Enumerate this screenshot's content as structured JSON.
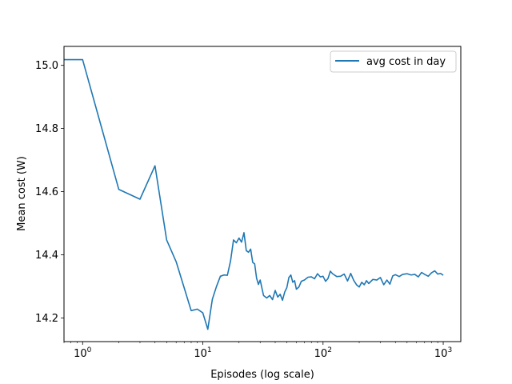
{
  "chart_data": {
    "type": "line",
    "xlabel": "Episodes (log scale)",
    "ylabel": "Mean cost (W)",
    "x_scale": "log",
    "xlim": [
      0.7,
      1400
    ],
    "ylim": [
      14.125,
      15.06
    ],
    "grid": false,
    "legend_position": "top-right",
    "x_ticks": [
      {
        "value": 1,
        "base": "10",
        "exp": "0"
      },
      {
        "value": 10,
        "base": "10",
        "exp": "1"
      },
      {
        "value": 100,
        "base": "10",
        "exp": "2"
      },
      {
        "value": 1000,
        "base": "10",
        "exp": "3"
      }
    ],
    "y_ticks": [
      {
        "value": 14.2,
        "label": "14.2"
      },
      {
        "value": 14.4,
        "label": "14.4"
      },
      {
        "value": 14.6,
        "label": "14.6"
      },
      {
        "value": 14.8,
        "label": "14.8"
      },
      {
        "value": 15.0,
        "label": "15.0"
      }
    ],
    "series": [
      {
        "name": "avg cost in day",
        "color": "#1f77b4",
        "x": [
          0.7,
          1,
          2,
          3,
          4,
          5,
          6,
          7,
          8,
          9,
          10,
          11,
          12,
          13,
          14,
          15,
          16,
          17,
          18,
          19,
          20,
          21,
          22,
          23,
          24,
          25,
          26,
          27,
          28,
          29,
          30,
          32,
          34,
          36,
          38,
          40,
          42,
          44,
          46,
          48,
          50,
          52,
          54,
          56,
          58,
          60,
          63,
          66,
          70,
          75,
          80,
          85,
          90,
          95,
          100,
          105,
          110,
          115,
          120,
          130,
          140,
          150,
          160,
          170,
          180,
          190,
          200,
          210,
          220,
          230,
          240,
          260,
          280,
          300,
          320,
          340,
          360,
          380,
          400,
          430,
          460,
          500,
          540,
          580,
          620,
          660,
          700,
          750,
          800,
          850,
          900,
          950,
          1000
        ],
        "y": [
          15.018,
          15.018,
          14.607,
          14.576,
          14.682,
          14.447,
          14.378,
          14.295,
          14.223,
          14.228,
          14.216,
          14.164,
          14.259,
          14.3,
          14.332,
          14.336,
          14.335,
          14.38,
          14.447,
          14.438,
          14.453,
          14.44,
          14.47,
          14.413,
          14.408,
          14.418,
          14.376,
          14.371,
          14.326,
          14.306,
          14.32,
          14.271,
          14.263,
          14.271,
          14.258,
          14.287,
          14.266,
          14.275,
          14.256,
          14.282,
          14.296,
          14.328,
          14.336,
          14.313,
          14.318,
          14.291,
          14.298,
          14.316,
          14.32,
          14.329,
          14.33,
          14.324,
          14.34,
          14.33,
          14.332,
          14.316,
          14.325,
          14.348,
          14.34,
          14.331,
          14.332,
          14.339,
          14.317,
          14.341,
          14.319,
          14.305,
          14.298,
          14.313,
          14.305,
          14.318,
          14.309,
          14.322,
          14.32,
          14.328,
          14.305,
          14.32,
          14.307,
          14.333,
          14.337,
          14.331,
          14.338,
          14.34,
          14.336,
          14.338,
          14.33,
          14.344,
          14.338,
          14.332,
          14.343,
          14.349,
          14.339,
          14.341,
          14.335
        ]
      }
    ]
  }
}
